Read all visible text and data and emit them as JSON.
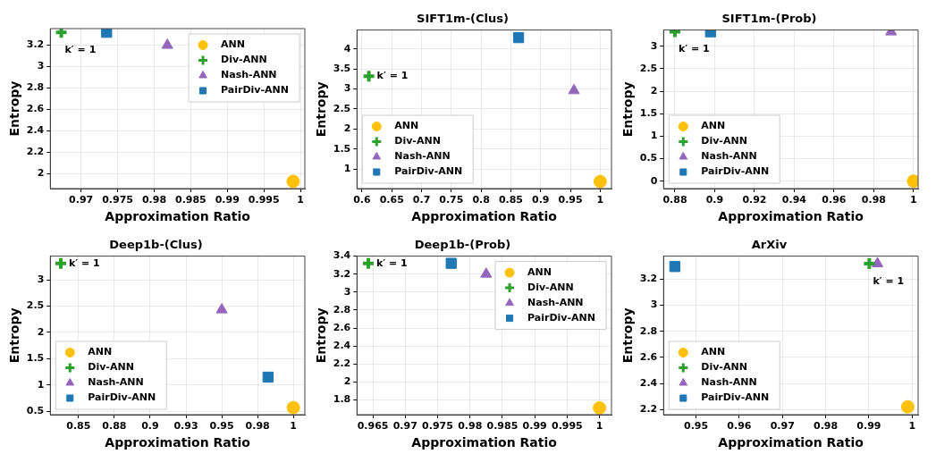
{
  "chart_data": [
    {
      "type": "scatter",
      "xlabel": "Approximation Ratio",
      "ylabel": "Entropy",
      "xlim": [
        0.9658,
        1.0006
      ],
      "xticks": [
        0.97,
        0.975,
        0.98,
        0.985,
        0.99,
        0.995,
        1
      ],
      "ylim": [
        1.863,
        3.355
      ],
      "yticks": [
        2,
        2.2,
        2.4,
        2.6,
        2.8,
        3,
        3.2
      ],
      "grid": true,
      "legend": "top right",
      "annotations": [
        {
          "text": "k′ = 1",
          "x": 0.9673,
          "y": 3.32
        }
      ],
      "series": [
        {
          "name": "ANN",
          "color": "#ffc107",
          "marker": "circle",
          "x": [
            0.999
          ],
          "values": [
            1.93
          ]
        },
        {
          "name": "Div-ANN",
          "color": "#2ca02c",
          "marker": "cross",
          "x": [
            0.9673
          ],
          "values": [
            3.32
          ]
        },
        {
          "name": "Nash-ANN",
          "color": "#9467bd",
          "marker": "triangle",
          "x": [
            0.9818
          ],
          "values": [
            3.2
          ]
        },
        {
          "name": "PairDiv-ANN",
          "color": "#1f77b4",
          "marker": "square",
          "x": [
            0.9735
          ],
          "values": [
            3.32
          ]
        }
      ]
    },
    {
      "type": "scatter",
      "title": "SIFT1m-(Clus)",
      "xlabel": "Approximation Ratio",
      "ylabel": "Entropy",
      "xlim": [
        0.5915,
        1.019
      ],
      "xticks": [
        0.6,
        0.65,
        0.7,
        0.75,
        0.8,
        0.85,
        0.9,
        0.95,
        1
      ],
      "ylim": [
        0.515,
        4.47
      ],
      "yticks": [
        1,
        1.5,
        2,
        2.5,
        3,
        3.5,
        4
      ],
      "grid": true,
      "legend": "bottom left",
      "annotations": [
        {
          "text": "k′ = 1",
          "x": 0.6115,
          "y": 3.32
        }
      ],
      "series": [
        {
          "name": "ANN",
          "color": "#ffc107",
          "marker": "circle",
          "x": [
            1.0
          ],
          "values": [
            0.69
          ]
        },
        {
          "name": "Div-ANN",
          "color": "#2ca02c",
          "marker": "cross",
          "x": [
            0.6115
          ],
          "values": [
            3.32
          ]
        },
        {
          "name": "Nash-ANN",
          "color": "#9467bd",
          "marker": "triangle",
          "x": [
            0.956
          ],
          "values": [
            2.96
          ]
        },
        {
          "name": "PairDiv-ANN",
          "color": "#1f77b4",
          "marker": "square",
          "x": [
            0.863
          ],
          "values": [
            4.28
          ]
        }
      ]
    },
    {
      "type": "scatter",
      "title": "SIFT1m-(Prob)",
      "xlabel": "Approximation Ratio",
      "ylabel": "Entropy",
      "xlim": [
        0.8743,
        1.0023
      ],
      "xticks": [
        0.88,
        0.9,
        0.92,
        0.94,
        0.96,
        0.98,
        1
      ],
      "ylim": [
        -0.164,
        3.36
      ],
      "yticks": [
        0,
        0.5,
        1,
        1.5,
        2,
        2.5,
        3
      ],
      "grid": true,
      "legend": "bottom left",
      "annotations": [
        {
          "text": "k′ = 1",
          "x": 0.88,
          "y": 3.32
        }
      ],
      "series": [
        {
          "name": "ANN",
          "color": "#ffc107",
          "marker": "circle",
          "x": [
            1.0
          ],
          "values": [
            0
          ]
        },
        {
          "name": "Div-ANN",
          "color": "#2ca02c",
          "marker": "cross",
          "x": [
            0.88
          ],
          "values": [
            3.32
          ]
        },
        {
          "name": "Nash-ANN",
          "color": "#9467bd",
          "marker": "triangle",
          "x": [
            0.9887
          ],
          "values": [
            3.32
          ]
        },
        {
          "name": "PairDiv-ANN",
          "color": "#1f77b4",
          "marker": "square",
          "x": [
            0.8979
          ],
          "values": [
            3.32
          ]
        }
      ]
    },
    {
      "type": "scatter",
      "title": "Deep1b-(Clus)",
      "xlabel": "Approximation Ratio",
      "ylabel": "Entropy",
      "xlim": [
        0.8303,
        1.008
      ],
      "xticks": [
        0.85,
        {
          "value": 0.875,
          "label": "0.88"
        },
        0.9,
        {
          "value": 0.925,
          "label": "0.93"
        },
        0.95,
        {
          "value": 0.975,
          "label": "0.98"
        },
        1
      ],
      "ylim": [
        0.437,
        3.449
      ],
      "yticks": [
        0.5,
        1,
        1.5,
        2,
        2.5,
        3
      ],
      "grid": true,
      "legend": "bottom left",
      "annotations": [
        {
          "text": "k′ = 1",
          "x": 0.8376,
          "y": 3.31
        }
      ],
      "series": [
        {
          "name": "ANN",
          "color": "#ffc107",
          "marker": "circle",
          "x": [
            1.0
          ],
          "values": [
            0.57
          ]
        },
        {
          "name": "Div-ANN",
          "color": "#2ca02c",
          "marker": "cross",
          "x": [
            0.8376
          ],
          "values": [
            3.31
          ]
        },
        {
          "name": "Nash-ANN",
          "color": "#9467bd",
          "marker": "triangle",
          "x": [
            0.95
          ],
          "values": [
            2.43
          ]
        },
        {
          "name": "PairDiv-ANN",
          "color": "#1f77b4",
          "marker": "square",
          "x": [
            0.9823
          ],
          "values": [
            1.15
          ]
        }
      ]
    },
    {
      "type": "scatter",
      "title": "Deep1b-(Prob)",
      "xlabel": "Approximation Ratio",
      "ylabel": "Entropy",
      "xlim": [
        0.96255,
        1.00185
      ],
      "xticks": [
        0.965,
        0.97,
        0.975,
        0.98,
        0.985,
        0.99,
        0.995,
        1
      ],
      "ylim": [
        1.635,
        3.4
      ],
      "yticks": [
        1.8,
        2,
        2.2,
        2.4,
        2.6,
        2.8,
        3,
        3.2,
        3.4
      ],
      "grid": true,
      "legend": "top right",
      "annotations": [
        {
          "text": "k′ = 1",
          "x": 0.9643,
          "y": 3.32
        }
      ],
      "series": [
        {
          "name": "ANN",
          "color": "#ffc107",
          "marker": "circle",
          "x": [
            1.0
          ],
          "values": [
            1.71
          ]
        },
        {
          "name": "Div-ANN",
          "color": "#2ca02c",
          "marker": "cross",
          "x": [
            0.9643
          ],
          "values": [
            3.32
          ]
        },
        {
          "name": "Nash-ANN",
          "color": "#9467bd",
          "marker": "triangle",
          "x": [
            0.9825
          ],
          "values": [
            3.2
          ]
        },
        {
          "name": "PairDiv-ANN",
          "color": "#1f77b4",
          "marker": "square",
          "x": [
            0.9771
          ],
          "values": [
            3.32
          ]
        }
      ]
    },
    {
      "type": "scatter",
      "title": "ArXiv",
      "xlabel": "Approximation Ratio",
      "ylabel": "Entropy",
      "xlim": [
        0.9425,
        1.0014
      ],
      "xticks": [
        0.95,
        0.96,
        0.97,
        0.98,
        0.99,
        1
      ],
      "ylim": [
        2.16,
        3.377
      ],
      "yticks": [
        2.2,
        2.4,
        2.6,
        2.8,
        3,
        3.2
      ],
      "grid": true,
      "legend": "bottom left",
      "annotations": [
        {
          "text": "k′ = 1",
          "x": 0.9901,
          "y": 3.32
        }
      ],
      "series": [
        {
          "name": "ANN",
          "color": "#ffc107",
          "marker": "circle",
          "x": [
            0.999
          ],
          "values": [
            2.22
          ]
        },
        {
          "name": "Div-ANN",
          "color": "#2ca02c",
          "marker": "cross",
          "x": [
            0.9901
          ],
          "values": [
            3.32
          ]
        },
        {
          "name": "Nash-ANN",
          "color": "#9467bd",
          "marker": "triangle",
          "x": [
            0.992
          ],
          "values": [
            3.32
          ]
        },
        {
          "name": "PairDiv-ANN",
          "color": "#1f77b4",
          "marker": "square",
          "x": [
            0.9451
          ],
          "values": [
            3.297
          ]
        }
      ]
    }
  ]
}
